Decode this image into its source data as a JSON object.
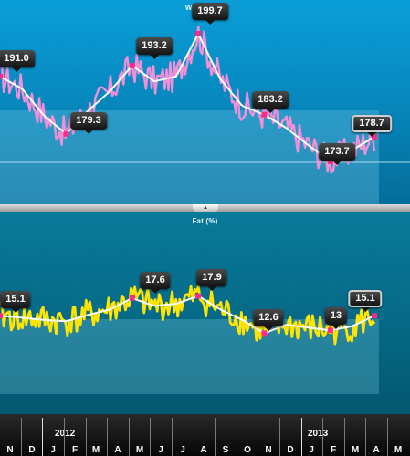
{
  "weight_chart": {
    "title": "Weight (lb)",
    "callouts": [
      "191.0",
      "179.3",
      "193.2",
      "199.7",
      "183.2",
      "173.7",
      "178.7"
    ],
    "colors": {
      "raw": "#f28fd8",
      "trend": "#ffffff",
      "marker": "#ff2a87"
    }
  },
  "fat_chart": {
    "title": "Fat (%)",
    "callouts": [
      "15.1",
      "17.6",
      "17.9",
      "12.6",
      "13",
      "15.1"
    ],
    "colors": {
      "raw": "#ffe400",
      "trend": "#ffffff",
      "marker": "#ff2a87"
    }
  },
  "divider": {
    "handle_icon": "▲"
  },
  "timeline": {
    "years": [
      "2012",
      "2013"
    ],
    "months": [
      "N",
      "D",
      "J",
      "F",
      "M",
      "A",
      "M",
      "J",
      "J",
      "A",
      "S",
      "O",
      "N",
      "D",
      "J",
      "F",
      "M",
      "A",
      "M"
    ]
  },
  "chart_data": [
    {
      "type": "line",
      "title": "Weight (lb)",
      "x": [
        "2011-11",
        "2011-12",
        "2012-01",
        "2012-02",
        "2012-03",
        "2012-04",
        "2012-05",
        "2012-06",
        "2012-07",
        "2012-08",
        "2012-09",
        "2012-10",
        "2012-11",
        "2012-12",
        "2013-01",
        "2013-02",
        "2013-03",
        "2013-04"
      ],
      "series": [
        {
          "values": [
            191.0,
            188.5,
            183.0,
            179.3,
            184.0,
            188.0,
            193.2,
            190.0,
            191.0,
            199.7,
            190.5,
            185.0,
            183.2,
            180.5,
            177.0,
            173.7,
            176.0,
            178.7
          ]
        }
      ],
      "annotations": [
        "191.0",
        "179.3",
        "193.2",
        "199.7",
        "183.2",
        "173.7",
        "178.7"
      ]
    },
    {
      "type": "line",
      "title": "Fat (%)",
      "x": [
        "2011-11",
        "2011-12",
        "2012-01",
        "2012-02",
        "2012-03",
        "2012-04",
        "2012-05",
        "2012-06",
        "2012-07",
        "2012-08",
        "2012-09",
        "2012-10",
        "2012-11",
        "2012-12",
        "2013-01",
        "2013-02",
        "2013-03",
        "2013-04"
      ],
      "series": [
        {
          "values": [
            15.1,
            14.8,
            14.5,
            14.3,
            15.2,
            16.0,
            17.6,
            16.5,
            16.8,
            17.9,
            16.0,
            14.5,
            12.6,
            13.8,
            13.4,
            13.0,
            13.6,
            15.1
          ]
        }
      ],
      "annotations": [
        "15.1",
        "17.6",
        "17.9",
        "12.6",
        "13",
        "15.1"
      ]
    }
  ]
}
